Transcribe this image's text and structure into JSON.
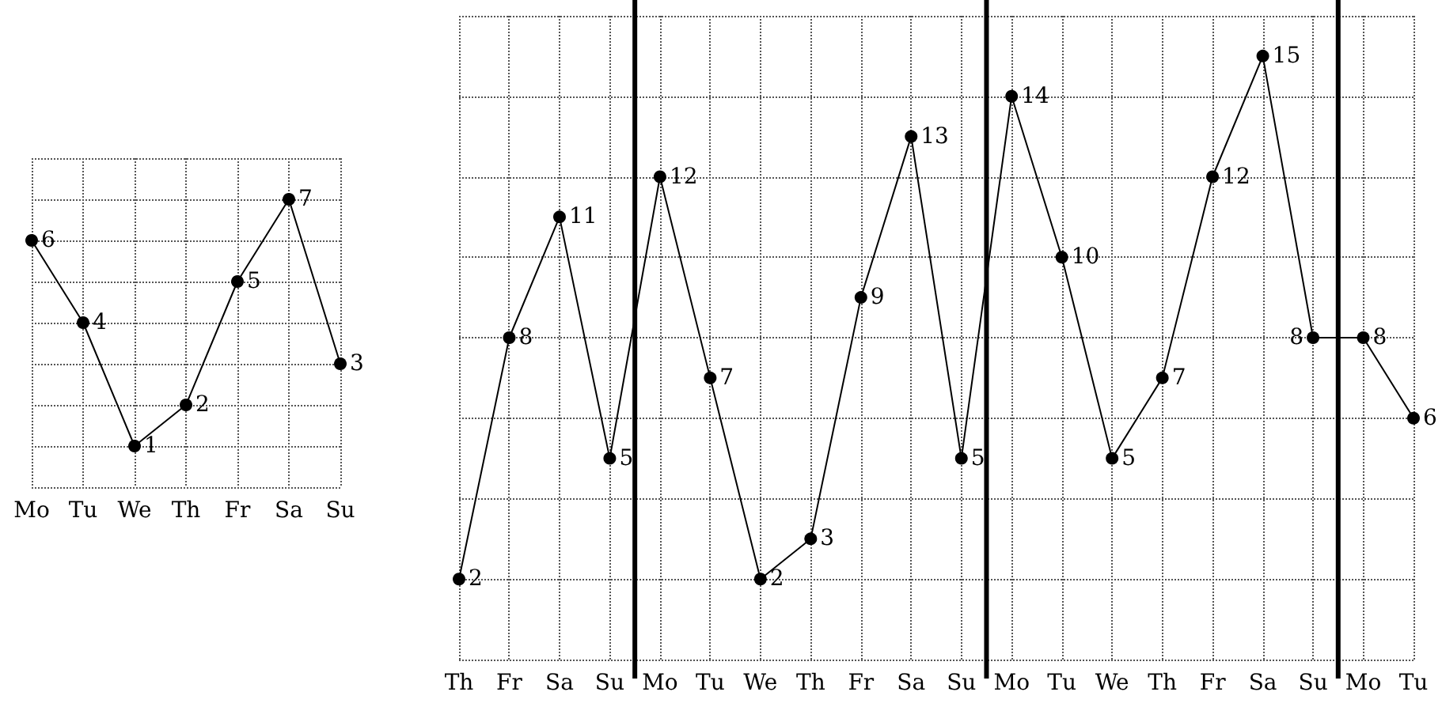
{
  "chart_data": [
    {
      "type": "line",
      "categories": [
        "Mo",
        "Tu",
        "We",
        "Th",
        "Fr",
        "Sa",
        "Su"
      ],
      "series": [
        {
          "color": "#000000",
          "values": [
            6,
            4,
            1,
            2,
            5,
            7,
            3
          ]
        }
      ],
      "ylim": [
        0,
        8
      ],
      "yticks": [
        {
          "value": 0,
          "label": null
        },
        {
          "value": 1,
          "label": null
        },
        {
          "value": 2,
          "label": null
        },
        {
          "value": 3,
          "label": null
        },
        {
          "value": 4,
          "label": null
        },
        {
          "value": 5,
          "label": null
        },
        {
          "value": 6,
          "label": null
        },
        {
          "value": 7,
          "label": null
        },
        {
          "value": 8,
          "label": null
        }
      ],
      "grid": true,
      "tick_labels": "x",
      "marker": "circle",
      "line_style": "solid",
      "data_labels": true
    },
    {
      "type": "line",
      "categories": [
        "Th",
        "Fr",
        "Sa",
        "Su",
        "Mo",
        "Tu",
        "We",
        "Th",
        "Fr",
        "Sa",
        "Su",
        "Mo",
        "Tu",
        "We",
        "Th",
        "Fr",
        "Sa",
        "Su",
        "Mo",
        "Tu"
      ],
      "series": [
        {
          "color": "#000000",
          "values": [
            2,
            8,
            11,
            5,
            12,
            7,
            2,
            3,
            9,
            13,
            5,
            14,
            10,
            5,
            7,
            12,
            15,
            8,
            8,
            6
          ]
        }
      ],
      "ylim": [
        0,
        16
      ],
      "yticks": [
        {
          "value": 0,
          "label": null
        },
        {
          "value": 2,
          "label": null
        },
        {
          "value": 4,
          "label": null
        },
        {
          "value": 6,
          "label": null
        },
        {
          "value": 8,
          "label": null
        },
        {
          "value": 10,
          "label": null
        },
        {
          "value": 12,
          "label": null
        },
        {
          "value": 14,
          "label": null
        },
        {
          "value": 16,
          "label": null
        }
      ],
      "grid": true,
      "tick_labels": "x",
      "marker": "circle",
      "line_style": "solid",
      "data_labels": true
    }
  ]
}
